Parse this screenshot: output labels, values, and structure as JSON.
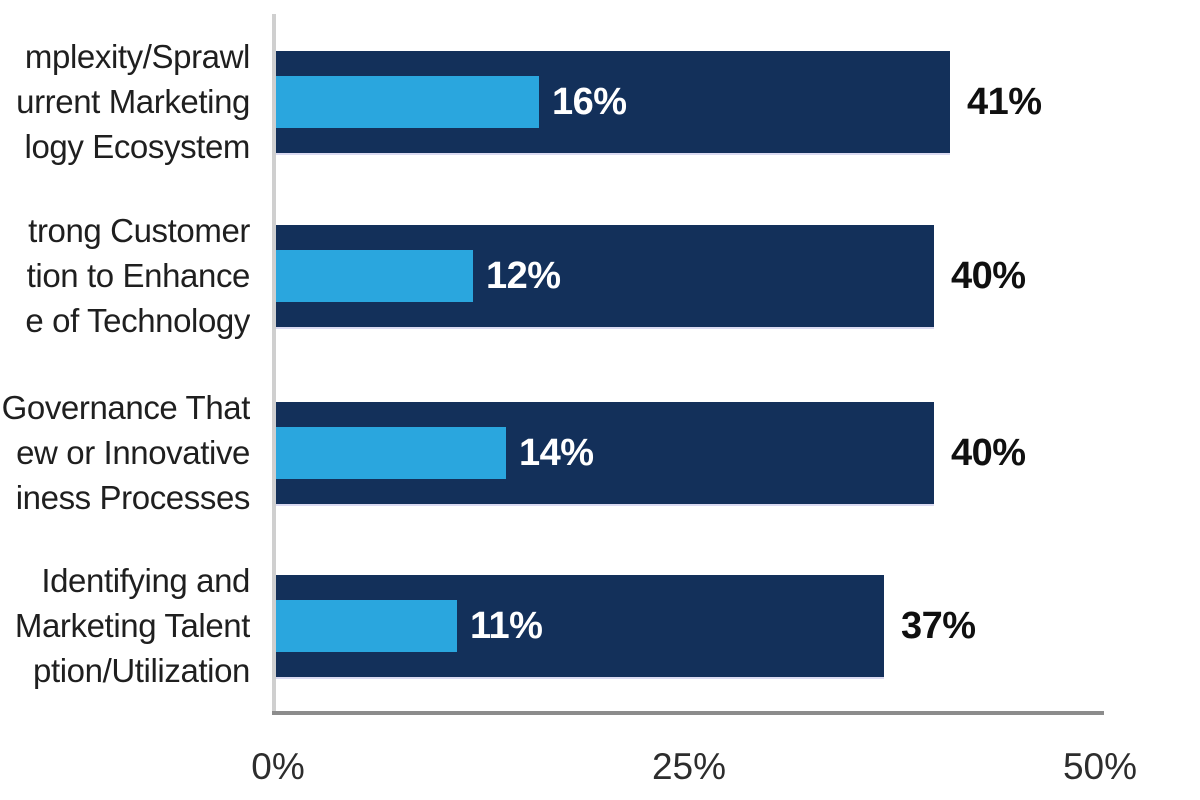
{
  "chart_data": {
    "type": "bar",
    "orientation": "horizontal",
    "title": "",
    "xlabel": "",
    "ylabel": "",
    "xlim": [
      0,
      50
    ],
    "x_ticks": [
      "0%",
      "25%",
      "50%"
    ],
    "grid": false,
    "legend": false,
    "categories": [
      [
        "mplexity/Sprawl",
        "urrent Marketing",
        "logy Ecosystem"
      ],
      [
        "trong Customer",
        "tion to Enhance",
        "e of Technology"
      ],
      [
        "Governance That",
        "ew or Innovative",
        "iness Processes"
      ],
      [
        "Identifying and",
        "Marketing Talent",
        "ption/Utilization"
      ]
    ],
    "series": [
      {
        "name": "dark-navy-bar",
        "color": "#13305a",
        "values": [
          41,
          40,
          40,
          37
        ],
        "value_labels": [
          "41%",
          "40%",
          "40%",
          "37%"
        ]
      },
      {
        "name": "light-blue-bar",
        "color": "#2aa6de",
        "values": [
          16,
          12,
          14,
          11
        ],
        "value_labels": [
          "16%",
          "12%",
          "14%",
          "11%"
        ]
      }
    ]
  }
}
